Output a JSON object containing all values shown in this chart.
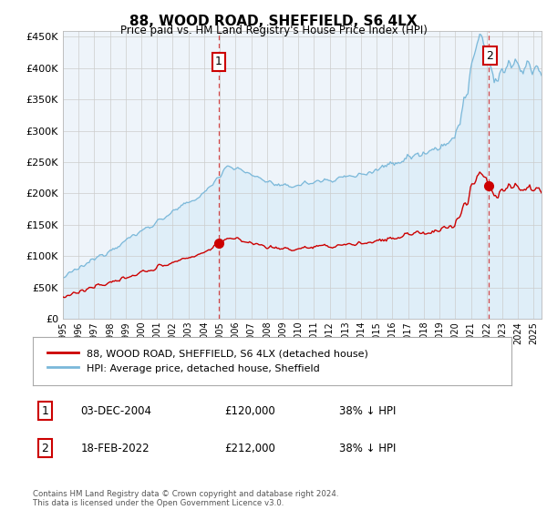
{
  "title": "88, WOOD ROAD, SHEFFIELD, S6 4LX",
  "subtitle": "Price paid vs. HM Land Registry's House Price Index (HPI)",
  "ylabel_ticks": [
    "£0",
    "£50K",
    "£100K",
    "£150K",
    "£200K",
    "£250K",
    "£300K",
    "£350K",
    "£400K",
    "£450K"
  ],
  "ytick_values": [
    0,
    50000,
    100000,
    150000,
    200000,
    250000,
    300000,
    350000,
    400000,
    450000
  ],
  "ylim": [
    0,
    460000
  ],
  "xlim_start": 1995.0,
  "xlim_end": 2025.5,
  "hpi_color": "#7ab8d9",
  "hpi_fill_color": "#d6eaf8",
  "property_color": "#cc0000",
  "vline_color": "#cc0000",
  "sale1_year": 2004.92,
  "sale1_price": 120000,
  "sale2_year": 2022.12,
  "sale2_price": 212000,
  "legend_property_label": "88, WOOD ROAD, SHEFFIELD, S6 4LX (detached house)",
  "legend_hpi_label": "HPI: Average price, detached house, Sheffield",
  "table_data": [
    {
      "num": "1",
      "date": "03-DEC-2004",
      "price": "£120,000",
      "hpi": "38% ↓ HPI"
    },
    {
      "num": "2",
      "date": "18-FEB-2022",
      "price": "£212,000",
      "hpi": "38% ↓ HPI"
    }
  ],
  "footer": "Contains HM Land Registry data © Crown copyright and database right 2024.\nThis data is licensed under the Open Government Licence v3.0.",
  "background_color": "#ffffff",
  "grid_color": "#cccccc",
  "xtick_years": [
    1995,
    1996,
    1997,
    1998,
    1999,
    2000,
    2001,
    2002,
    2003,
    2004,
    2005,
    2006,
    2007,
    2008,
    2009,
    2010,
    2011,
    2012,
    2013,
    2014,
    2015,
    2016,
    2017,
    2018,
    2019,
    2020,
    2021,
    2022,
    2023,
    2024,
    2025
  ]
}
